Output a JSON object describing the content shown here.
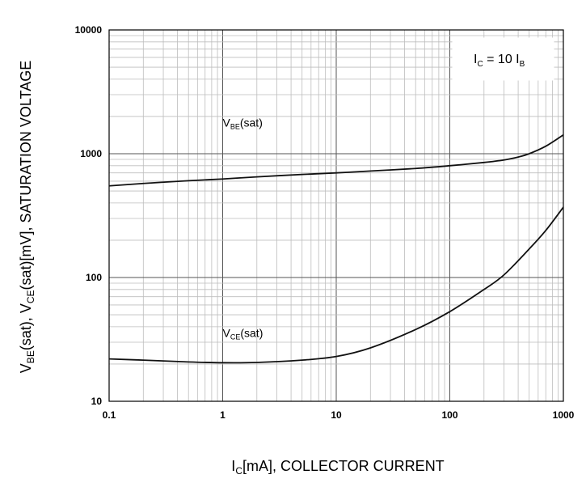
{
  "chart_data": {
    "type": "line",
    "x_scale": "log",
    "y_scale": "log",
    "xlim": [
      0.1,
      1000
    ],
    "ylim": [
      10,
      10000
    ],
    "grid": true,
    "x_ticks": [
      0.1,
      1,
      10,
      100,
      1000
    ],
    "x_tick_labels": [
      "0.1",
      "1",
      "10",
      "100",
      "1000"
    ],
    "y_ticks": [
      10,
      100,
      1000,
      10000
    ],
    "y_tick_labels": [
      "10",
      "100",
      "1000",
      "10000"
    ],
    "xlabel": {
      "main": "I",
      "sub": "C",
      "rest": "[mA], COLLECTOR CURRENT"
    },
    "ylabel": {
      "p1": "V",
      "s1": "BE",
      "p2": "(sat),  V",
      "s2": "CE",
      "p3": "(sat)[mV], SATURATION VOLTAGE"
    },
    "legend": {
      "placement": "top-right",
      "p1": "I",
      "s1": "C",
      "p2": " = 10 I",
      "s2": "B"
    },
    "series": [
      {
        "name": "VBE(sat)",
        "label": {
          "main": "V",
          "sub": "BE",
          "rest": "(sat)"
        },
        "label_at": {
          "x": 1.0,
          "y": 1650
        },
        "x": [
          0.1,
          0.2,
          0.5,
          1,
          2,
          5,
          10,
          20,
          50,
          100,
          200,
          300,
          400,
          500,
          700,
          1000
        ],
        "y": [
          550,
          575,
          605,
          625,
          650,
          680,
          700,
          725,
          760,
          800,
          850,
          890,
          940,
          1000,
          1150,
          1420
        ]
      },
      {
        "name": "VCE(sat)",
        "label": {
          "main": "V",
          "sub": "CE",
          "rest": "(sat)"
        },
        "label_at": {
          "x": 1.0,
          "y": 33
        },
        "x": [
          0.1,
          0.2,
          0.5,
          1,
          2,
          5,
          10,
          20,
          50,
          100,
          200,
          300,
          500,
          700,
          1000
        ],
        "y": [
          22,
          21.5,
          20.8,
          20.5,
          20.6,
          21.5,
          23,
          27,
          38,
          53,
          80,
          105,
          170,
          240,
          370
        ]
      }
    ]
  }
}
